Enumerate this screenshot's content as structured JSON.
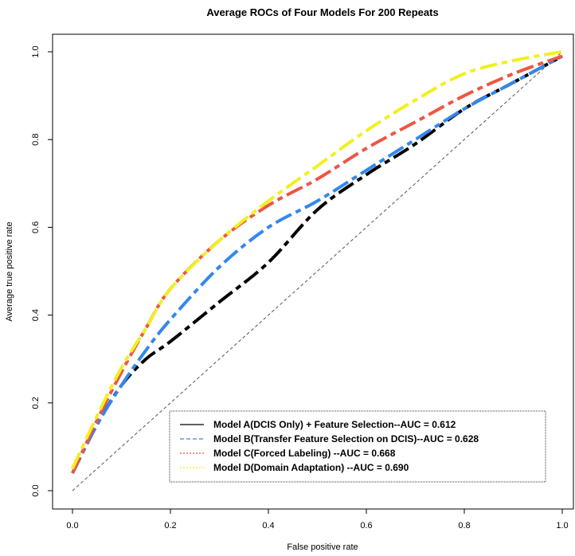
{
  "chart_data": {
    "type": "line",
    "title": "Average ROCs of Four Models For 200 Repeats",
    "xlabel": "False positive rate",
    "ylabel": "Average true positive rate",
    "xlim": [
      0.0,
      1.0
    ],
    "ylim": [
      0.0,
      1.0
    ],
    "xticks": [
      "0.0",
      "0.2",
      "0.4",
      "0.6",
      "0.8",
      "1.0"
    ],
    "yticks": [
      "0.0",
      "0.2",
      "0.4",
      "0.6",
      "0.8",
      "1.0"
    ],
    "grid": false,
    "legend_position": "bottom-right",
    "reference_line": {
      "x": [
        0,
        1
      ],
      "y": [
        0,
        1
      ],
      "color": "#555555",
      "style": "dashed"
    },
    "series": [
      {
        "name": "Model A(DCIS Only) + Feature Selection--AUC = 0.612",
        "color": "#000000",
        "x": [
          0.0,
          0.05,
          0.1,
          0.15,
          0.2,
          0.3,
          0.4,
          0.5,
          0.6,
          0.7,
          0.8,
          0.9,
          1.0
        ],
        "y": [
          0.04,
          0.15,
          0.24,
          0.3,
          0.34,
          0.43,
          0.52,
          0.64,
          0.72,
          0.79,
          0.87,
          0.93,
          0.99
        ]
      },
      {
        "name": "Model B(Transfer Feature Selection on DCIS)--AUC = 0.628",
        "color": "#3388ee",
        "x": [
          0.0,
          0.05,
          0.1,
          0.15,
          0.2,
          0.3,
          0.4,
          0.5,
          0.6,
          0.7,
          0.8,
          0.9,
          1.0
        ],
        "y": [
          0.04,
          0.15,
          0.24,
          0.32,
          0.39,
          0.51,
          0.6,
          0.66,
          0.73,
          0.8,
          0.87,
          0.93,
          0.99
        ]
      },
      {
        "name": "Model C(Forced Labeling) --AUC = 0.668",
        "color": "#ee5544",
        "x": [
          0.0,
          0.05,
          0.1,
          0.15,
          0.2,
          0.3,
          0.4,
          0.5,
          0.6,
          0.7,
          0.8,
          0.9,
          1.0
        ],
        "y": [
          0.04,
          0.16,
          0.27,
          0.37,
          0.46,
          0.57,
          0.65,
          0.71,
          0.78,
          0.84,
          0.9,
          0.95,
          0.99
        ]
      },
      {
        "name": "Model D(Domain Adaptation) --AUC = 0.690",
        "color": "#f0f020",
        "x": [
          0.0,
          0.05,
          0.1,
          0.15,
          0.2,
          0.3,
          0.4,
          0.5,
          0.6,
          0.7,
          0.8,
          0.9,
          1.0
        ],
        "y": [
          0.05,
          0.17,
          0.28,
          0.37,
          0.46,
          0.57,
          0.66,
          0.74,
          0.82,
          0.89,
          0.95,
          0.98,
          1.0
        ]
      }
    ]
  }
}
